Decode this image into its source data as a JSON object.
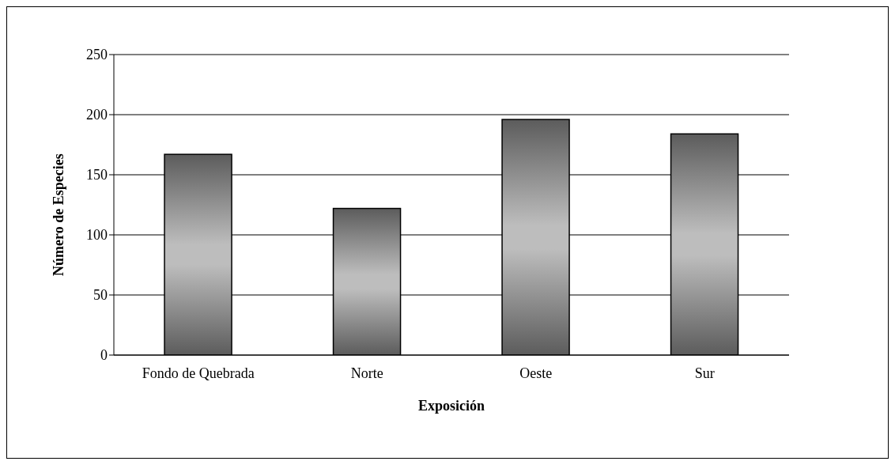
{
  "chart_data": {
    "type": "bar",
    "xlabel": "Exposición",
    "ylabel": "Número de Especies",
    "categories": [
      "Fondo de Quebrada",
      "Norte",
      "Oeste",
      "Sur"
    ],
    "values": [
      167,
      122,
      196,
      184
    ],
    "color": "#5c5c5c",
    "ylim": [
      0,
      250
    ],
    "yticks": [
      0,
      50,
      100,
      150,
      200,
      250
    ],
    "grid": "y"
  }
}
